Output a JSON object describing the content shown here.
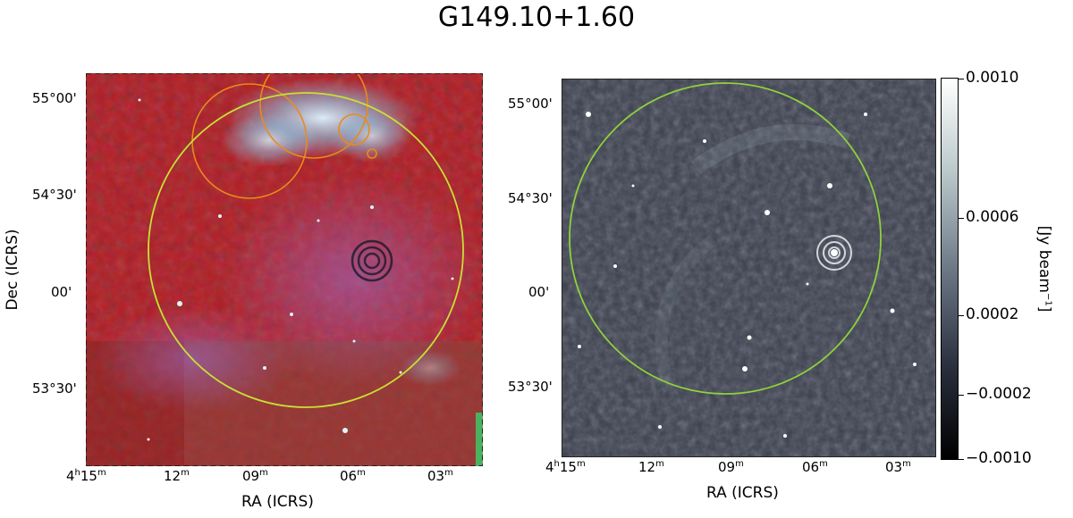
{
  "figure": {
    "title": "G149.10+1.60"
  },
  "left_panel": {
    "ylabel": "Dec (ICRS)",
    "xlabel": "RA (ICRS)",
    "dec_ticks": [
      {
        "label": "55°00'"
      },
      {
        "label": "54°30'"
      },
      {
        "label": "00'"
      },
      {
        "label": "53°30'"
      }
    ],
    "ra_ticks": [
      {
        "label": "4h15m"
      },
      {
        "label": "12m"
      },
      {
        "label": "09m"
      },
      {
        "label": "06m"
      },
      {
        "label": "03m"
      }
    ],
    "colors": {
      "background": "#b51d24",
      "region_circle": "#c8e035",
      "orange_circles": "#ea8a1b",
      "cyan_emission": "#bfe8f0"
    }
  },
  "right_panel": {
    "xlabel": "RA (ICRS)",
    "dec_ticks": [
      {
        "label": "55°00'"
      },
      {
        "label": "54°30'"
      },
      {
        "label": "00'"
      },
      {
        "label": "53°30'"
      }
    ],
    "ra_ticks": [
      {
        "label": "4h15m"
      },
      {
        "label": "12m"
      },
      {
        "label": "09m"
      },
      {
        "label": "06m"
      },
      {
        "label": "03m"
      }
    ],
    "colors": {
      "background": "#3a3f4c",
      "region_circle": "#8fd13c"
    }
  },
  "colorbar": {
    "ticks": [
      {
        "label": "0.0010"
      },
      {
        "label": "0.0006"
      },
      {
        "label": "0.0002"
      },
      {
        "label": "−0.0002"
      },
      {
        "label": "−0.0010"
      }
    ],
    "unit": "[Jy beam−1]",
    "unit_main": "[Jy beam",
    "unit_exp": "−1",
    "unit_end": "]"
  }
}
